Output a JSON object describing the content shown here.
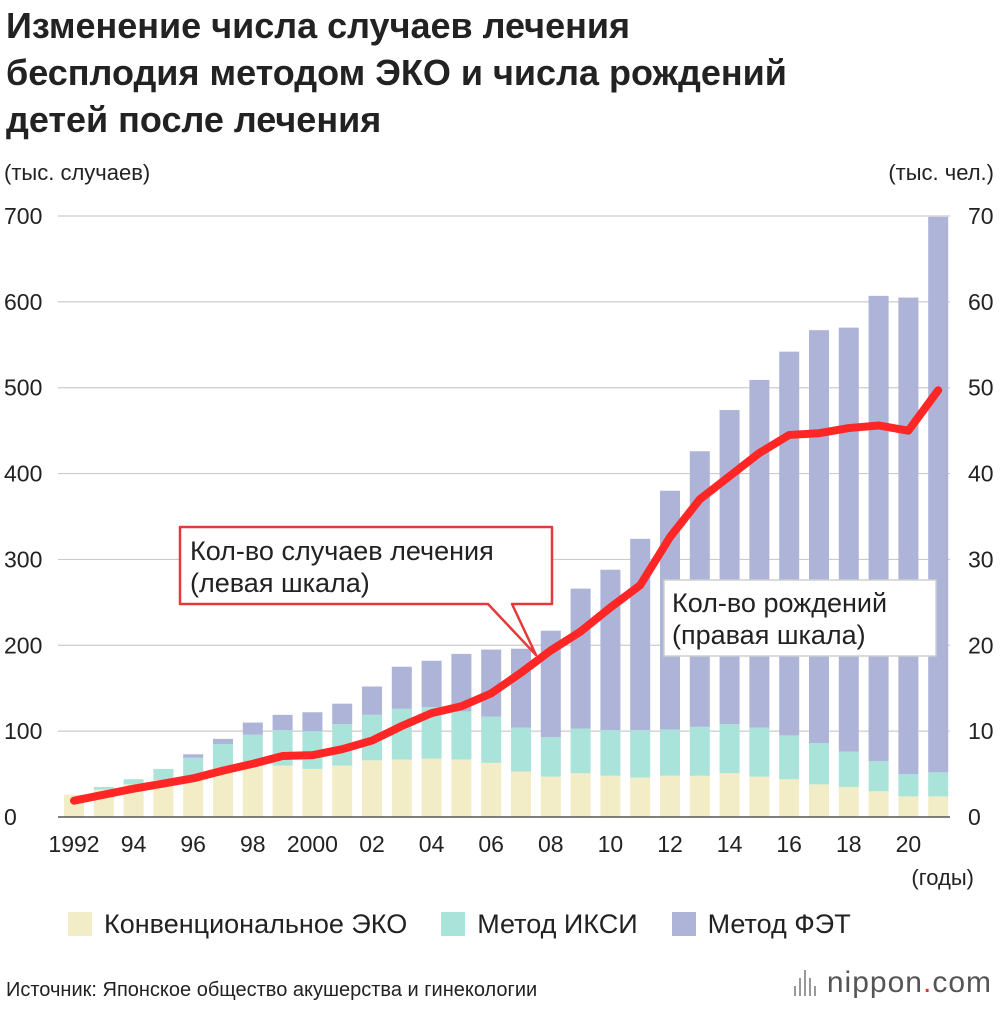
{
  "title_lines": [
    "Изменение числа случаев лечения",
    "бесплодия методом ЭКО и числа рождений",
    "детей после лечения"
  ],
  "units": {
    "left": "(тыс. случаев)",
    "right": "(тыс. чел.)",
    "x": "(годы)"
  },
  "colors": {
    "conventional": "#f2edc6",
    "icsi": "#a9e3da",
    "fet": "#adb4d7",
    "line": "#ff2626",
    "callout_border": "#e63a3a"
  },
  "legend": [
    {
      "label": "Конвенциональное ЭКО",
      "color": "#f2edc6"
    },
    {
      "label": "Метод ИКСИ",
      "color": "#a9e3da"
    },
    {
      "label": "Метод ФЭТ",
      "color": "#adb4d7"
    }
  ],
  "callouts": {
    "treatments": [
      "Кол-во случаев лечения",
      "(левая шкала)"
    ],
    "births": [
      "Кол-во рождений",
      "(правая шкала)"
    ]
  },
  "source": "Источник: Японское общество акушерства и гинекологии",
  "logo": {
    "main": "nippon",
    "dot": ".",
    "suffix": "com"
  },
  "chart_data": {
    "type": "bar",
    "stacked": true,
    "years": [
      1992,
      1993,
      1994,
      1995,
      1996,
      1997,
      1998,
      1999,
      2000,
      2001,
      2002,
      2003,
      2004,
      2005,
      2006,
      2007,
      2008,
      2009,
      2010,
      2011,
      2012,
      2013,
      2014,
      2015,
      2016,
      2017,
      2018,
      2019,
      2020,
      2021
    ],
    "x_tick_labels": [
      {
        "year": 1992,
        "label": "1992"
      },
      {
        "year": 1994,
        "label": "94"
      },
      {
        "year": 1996,
        "label": "96"
      },
      {
        "year": 1998,
        "label": "98"
      },
      {
        "year": 2000,
        "label": "2000"
      },
      {
        "year": 2002,
        "label": "02"
      },
      {
        "year": 2004,
        "label": "04"
      },
      {
        "year": 2006,
        "label": "06"
      },
      {
        "year": 2008,
        "label": "08"
      },
      {
        "year": 2010,
        "label": "10"
      },
      {
        "year": 2012,
        "label": "12"
      },
      {
        "year": 2014,
        "label": "14"
      },
      {
        "year": 2016,
        "label": "16"
      },
      {
        "year": 2018,
        "label": "18"
      },
      {
        "year": 2020,
        "label": "20"
      }
    ],
    "series": [
      {
        "name": "Конвенциональное ЭКО",
        "axis": "left",
        "values": [
          26,
          32,
          38,
          43,
          45,
          52,
          59,
          60,
          56,
          60,
          66,
          67,
          68,
          67,
          63,
          53,
          47,
          51,
          48,
          46,
          48,
          48,
          51,
          47,
          44,
          38,
          35,
          30,
          24,
          24
        ]
      },
      {
        "name": "Метод ИКСИ",
        "axis": "left",
        "values": [
          0,
          3,
          6,
          13,
          24,
          33,
          37,
          41,
          44,
          48,
          53,
          59,
          60,
          56,
          54,
          51,
          46,
          52,
          53,
          55,
          54,
          57,
          57,
          57,
          51,
          48,
          41,
          35,
          26,
          28
        ]
      },
      {
        "name": "Метод ФЭТ",
        "axis": "left",
        "values": [
          0,
          0,
          0,
          0,
          4,
          6,
          14,
          18,
          22,
          24,
          33,
          49,
          54,
          67,
          78,
          92,
          124,
          163,
          187,
          223,
          278,
          321,
          366,
          405,
          447,
          481,
          494,
          542,
          555,
          647
        ]
      },
      {
        "name": "Кол-во рождений",
        "axis": "right",
        "type": "line",
        "values": [
          1.9,
          2.6,
          3.3,
          3.9,
          4.5,
          5.4,
          6.2,
          7.1,
          7.2,
          7.9,
          8.9,
          10.6,
          12.1,
          12.9,
          14.4,
          16.8,
          19.4,
          21.6,
          24.4,
          27.0,
          32.6,
          37.0,
          39.7,
          42.4,
          44.5,
          44.7,
          45.3,
          45.6,
          45.0,
          49.7
        ]
      }
    ],
    "left_axis": {
      "min": 0,
      "max": 700,
      "ticks": [
        0,
        100,
        200,
        300,
        400,
        500,
        600,
        700
      ]
    },
    "right_axis": {
      "min": 0,
      "max": 70,
      "ticks": [
        0,
        10,
        20,
        30,
        40,
        50,
        60,
        70
      ]
    },
    "grid": true
  }
}
